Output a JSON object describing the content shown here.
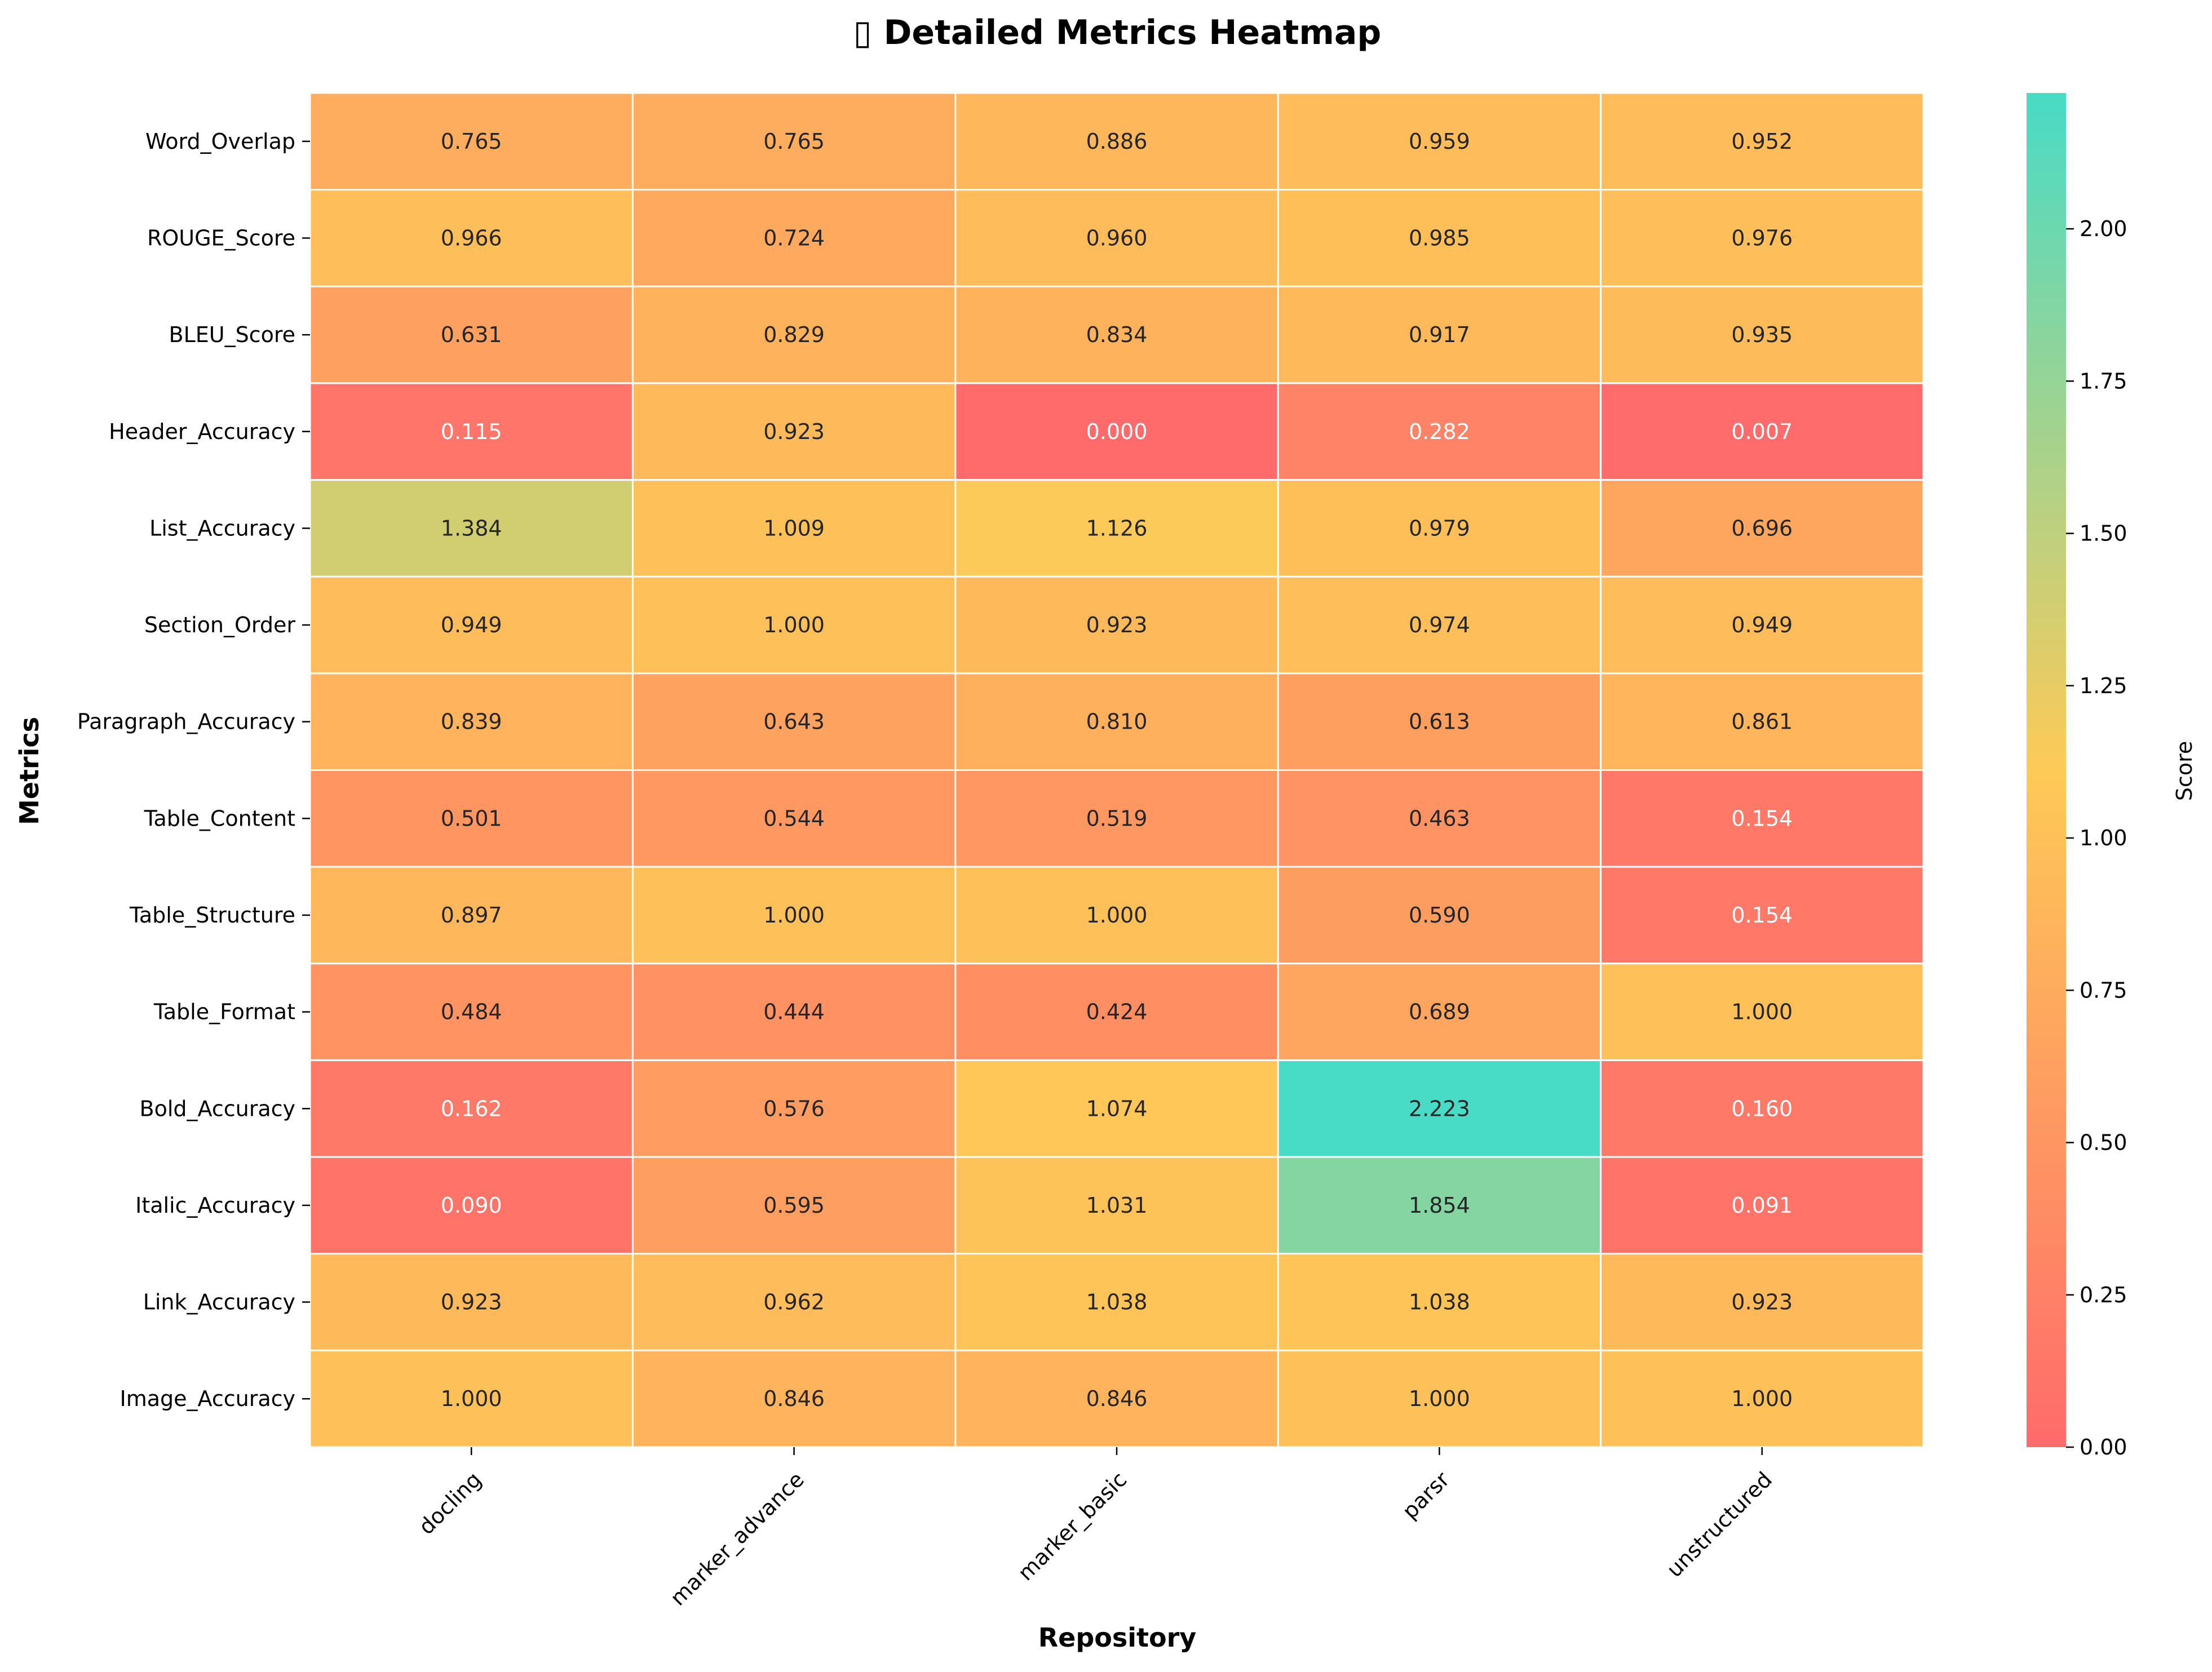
{
  "chart_data": {
    "type": "heatmap",
    "title": "▯ Detailed Metrics Heatmap",
    "xlabel": "Repository",
    "ylabel": "Metrics",
    "columns": [
      "docling",
      "marker_advance",
      "marker_basic",
      "parsr",
      "unstructured"
    ],
    "rows": [
      "Word_Overlap",
      "ROUGE_Score",
      "BLEU_Score",
      "Header_Accuracy",
      "List_Accuracy",
      "Section_Order",
      "Paragraph_Accuracy",
      "Table_Content",
      "Table_Structure",
      "Table_Format",
      "Bold_Accuracy",
      "Italic_Accuracy",
      "Link_Accuracy",
      "Image_Accuracy"
    ],
    "values": [
      [
        0.765,
        0.765,
        0.886,
        0.959,
        0.952
      ],
      [
        0.966,
        0.724,
        0.96,
        0.985,
        0.976
      ],
      [
        0.631,
        0.829,
        0.834,
        0.917,
        0.935
      ],
      [
        0.115,
        0.923,
        0.0,
        0.282,
        0.007
      ],
      [
        1.384,
        1.009,
        1.126,
        0.979,
        0.696
      ],
      [
        0.949,
        1.0,
        0.923,
        0.974,
        0.949
      ],
      [
        0.839,
        0.643,
        0.81,
        0.613,
        0.861
      ],
      [
        0.501,
        0.544,
        0.519,
        0.463,
        0.154
      ],
      [
        0.897,
        1.0,
        1.0,
        0.59,
        0.154
      ],
      [
        0.484,
        0.444,
        0.424,
        0.689,
        1.0
      ],
      [
        0.162,
        0.576,
        1.074,
        2.223,
        0.16
      ],
      [
        0.09,
        0.595,
        1.031,
        1.854,
        0.091
      ],
      [
        0.923,
        0.962,
        1.038,
        1.038,
        0.923
      ],
      [
        1.0,
        0.846,
        0.846,
        1.0,
        1.0
      ]
    ],
    "value_format": "0.000",
    "color_range": [
      0.0,
      2.223
    ],
    "colormap": [
      "#ff6b6b",
      "#feca57",
      "#48dbc6"
    ],
    "colormap_mid_value": 1.1115,
    "colorbar": {
      "label": "Score",
      "ticks": [
        "0.00",
        "0.25",
        "0.50",
        "0.75",
        "1.00",
        "1.25",
        "1.50",
        "1.75",
        "2.00"
      ],
      "tick_values": [
        0,
        0.25,
        0.5,
        0.75,
        1.0,
        1.25,
        1.5,
        1.75,
        2.0
      ]
    },
    "grid": true,
    "cell_border_color": "#ffffff"
  }
}
